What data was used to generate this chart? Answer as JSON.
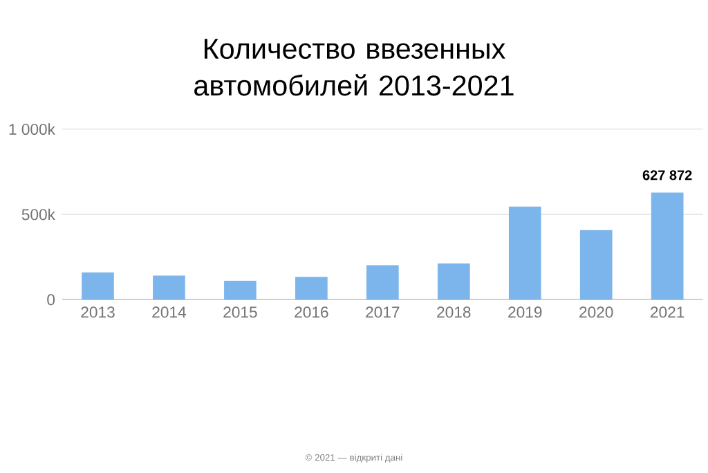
{
  "chart_data": {
    "type": "bar",
    "title": "Количество ввезенных автомобилей 2013-2021",
    "categories": [
      "2013",
      "2014",
      "2015",
      "2016",
      "2017",
      "2018",
      "2019",
      "2020",
      "2021"
    ],
    "values": [
      159000,
      141000,
      111000,
      133000,
      202000,
      212000,
      546000,
      408000,
      627872
    ],
    "value_labels": [
      null,
      null,
      null,
      null,
      null,
      null,
      null,
      null,
      "627 872"
    ],
    "color": "#7cb5ec",
    "ylim": [
      0,
      1000000
    ],
    "yticks": [
      0,
      {
        "value": 500000,
        "label": "500k"
      },
      {
        "value": 1000000,
        "label": "1 000k"
      }
    ],
    "grid": "y",
    "annotations": [
      "© 2021 — відкриті дані"
    ]
  }
}
